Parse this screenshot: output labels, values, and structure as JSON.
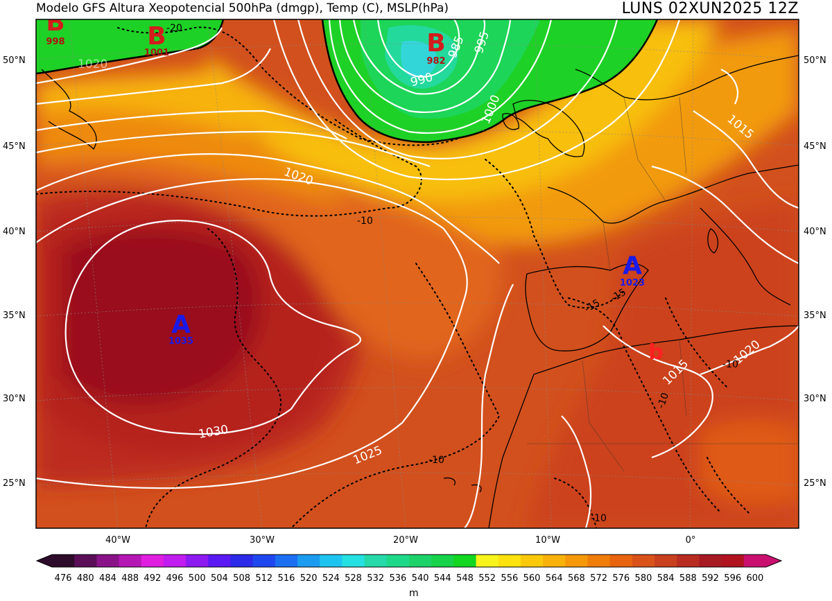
{
  "header": {
    "title": "Modelo GFS   Altura Xeopotencial 500hPa (dmgp), Temp (C), MSLP(hPa)",
    "valid_time": "LUNS   02XUN2025 12Z"
  },
  "axes": {
    "lat_labels": [
      "50°N",
      "45°N",
      "40°N",
      "35°N",
      "30°N",
      "25°N"
    ],
    "lon_labels": [
      "40°W",
      "30°W",
      "20°W",
      "10°W",
      "0°"
    ]
  },
  "pressure_centers": [
    {
      "letter": "B",
      "value": "998",
      "type": "low"
    },
    {
      "letter": "B",
      "value": "1001",
      "type": "low"
    },
    {
      "letter": "B",
      "value": "982",
      "type": "low"
    },
    {
      "letter": "A",
      "value": "1035",
      "type": "high"
    },
    {
      "letter": "A",
      "value": "1023",
      "type": "high"
    },
    {
      "letter": "b",
      "value": "",
      "type": "low"
    }
  ],
  "isobar_labels": [
    "1030",
    "1025",
    "1020",
    "1020",
    "1015",
    "1015",
    "995",
    "990",
    "985",
    "1000",
    "1020"
  ],
  "isotherm_labels": [
    "-20",
    "-10",
    "-10",
    "-10",
    "-10",
    "-15",
    "-15",
    "-10"
  ],
  "colorbar": {
    "ticks": [
      "476",
      "480",
      "484",
      "488",
      "492",
      "496",
      "500",
      "504",
      "508",
      "512",
      "516",
      "520",
      "524",
      "528",
      "532",
      "536",
      "540",
      "544",
      "548",
      "552",
      "556",
      "560",
      "564",
      "568",
      "572",
      "576",
      "580",
      "584",
      "588",
      "592",
      "596",
      "600"
    ],
    "colors": [
      "#2d0b2a",
      "#5a0e57",
      "#8a1288",
      "#b517b4",
      "#e01ee0",
      "#c11cf0",
      "#8d1af0",
      "#5a18f2",
      "#2a2ae8",
      "#1f47f0",
      "#1c6ff0",
      "#1b9cf0",
      "#1ec4f0",
      "#25e0e0",
      "#25d9a8",
      "#1ed88a",
      "#1ed26a",
      "#18d24a",
      "#12d622",
      "#f6f41c",
      "#fde20f",
      "#fbc90c",
      "#f8b20a",
      "#f5980a",
      "#f07c0a",
      "#e8640f",
      "#d9521a",
      "#c8401e",
      "#b82c22",
      "#a71a22",
      "#b0121e",
      "#c9106e"
    ],
    "unit": "m"
  }
}
